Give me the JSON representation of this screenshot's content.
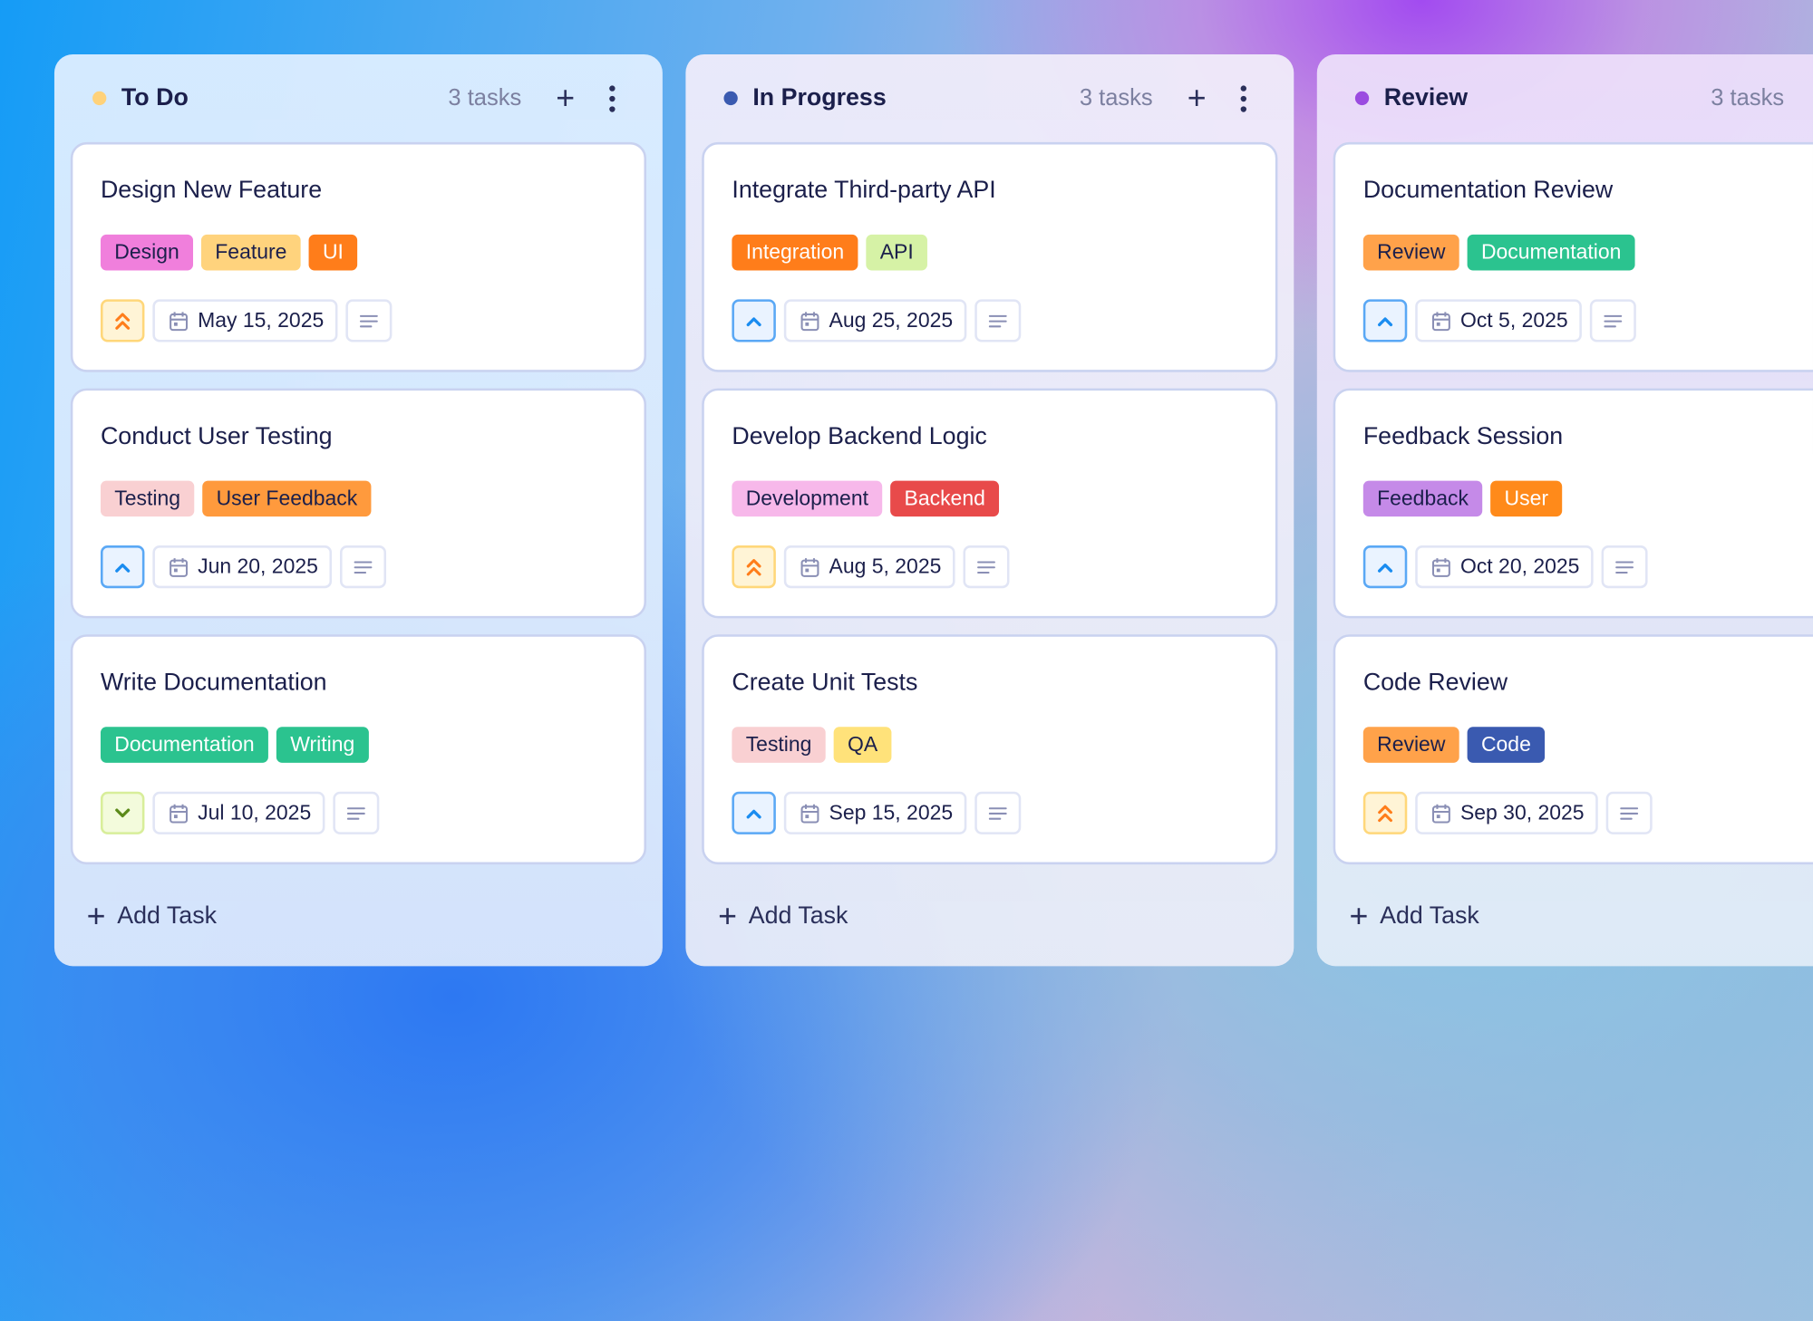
{
  "columns": [
    {
      "title": "To Do",
      "count": "3 tasks",
      "dot_color": "#ffd27a",
      "add_label": "Add Task",
      "cards": [
        {
          "title": "Design New Feature",
          "priority": "high",
          "date": "May 15, 2025",
          "tags": [
            {
              "label": "Design",
              "bg": "#f07fdc",
              "fg": "#1b1f4b"
            },
            {
              "label": "Feature",
              "bg": "#ffd37d",
              "fg": "#1b1f4b"
            },
            {
              "label": "UI",
              "bg": "#ff7d1a",
              "fg": "#ffffff"
            }
          ]
        },
        {
          "title": "Conduct User Testing",
          "priority": "medium",
          "date": "Jun 20, 2025",
          "tags": [
            {
              "label": "Testing",
              "bg": "#f9d0d2",
              "fg": "#1b1f4b"
            },
            {
              "label": "User Feedback",
              "bg": "#ff9a3d",
              "fg": "#1b1f4b"
            }
          ]
        },
        {
          "title": "Write Documentation",
          "priority": "low",
          "date": "Jul 10, 2025",
          "tags": [
            {
              "label": "Documentation",
              "bg": "#2bc38f",
              "fg": "#ffffff"
            },
            {
              "label": "Writing",
              "bg": "#2bc38f",
              "fg": "#ffffff"
            }
          ]
        }
      ]
    },
    {
      "title": "In Progress",
      "count": "3 tasks",
      "dot_color": "#3a5ab0",
      "add_label": "Add Task",
      "cards": [
        {
          "title": "Integrate Third-party API",
          "priority": "medium",
          "date": "Aug 25, 2025",
          "tags": [
            {
              "label": "Integration",
              "bg": "#ff7d1a",
              "fg": "#ffffff"
            },
            {
              "label": "API",
              "bg": "#d6f2a6",
              "fg": "#1b1f4b"
            }
          ]
        },
        {
          "title": "Develop Backend Logic",
          "priority": "high",
          "date": "Aug 5, 2025",
          "tags": [
            {
              "label": "Development",
              "bg": "#f7b8ea",
              "fg": "#1b1f4b"
            },
            {
              "label": "Backend",
              "bg": "#e84a4a",
              "fg": "#ffffff"
            }
          ]
        },
        {
          "title": "Create Unit Tests",
          "priority": "medium",
          "date": "Sep 15, 2025",
          "tags": [
            {
              "label": "Testing",
              "bg": "#f9d0d2",
              "fg": "#1b1f4b"
            },
            {
              "label": "QA",
              "bg": "#ffe27a",
              "fg": "#1b1f4b"
            }
          ]
        }
      ]
    },
    {
      "title": "Review",
      "count": "3 tasks",
      "dot_color": "#9b4be0",
      "add_label": "Add Task",
      "cards": [
        {
          "title": "Documentation Review",
          "priority": "medium",
          "date": "Oct 5, 2025",
          "tags": [
            {
              "label": "Review",
              "bg": "#ffa24a",
              "fg": "#1b1f4b"
            },
            {
              "label": "Documentation",
              "bg": "#2bc38f",
              "fg": "#ffffff"
            }
          ]
        },
        {
          "title": "Feedback Session",
          "priority": "medium",
          "date": "Oct 20, 2025",
          "tags": [
            {
              "label": "Feedback",
              "bg": "#c58ae8",
              "fg": "#1b1f4b"
            },
            {
              "label": "User",
              "bg": "#ff8a1a",
              "fg": "#ffffff"
            }
          ]
        },
        {
          "title": "Code Review",
          "priority": "high",
          "date": "Sep 30, 2025",
          "tags": [
            {
              "label": "Review",
              "bg": "#ffa24a",
              "fg": "#1b1f4b"
            },
            {
              "label": "Code",
              "bg": "#3a5ab0",
              "fg": "#ffffff"
            }
          ]
        }
      ]
    }
  ],
  "priority_styles": {
    "high": {
      "icon": "double-chevron-up",
      "color": "#ff7d1a",
      "bg": "#fff4d6",
      "border": "#ffd77a"
    },
    "medium": {
      "icon": "chevron-up",
      "color": "#1a8cf0",
      "bg": "#eaf3ff",
      "border": "#5aa8f5"
    },
    "low": {
      "icon": "chevron-down",
      "color": "#5c8a1a",
      "bg": "#f3fbdc",
      "border": "#d8ee9a"
    }
  }
}
